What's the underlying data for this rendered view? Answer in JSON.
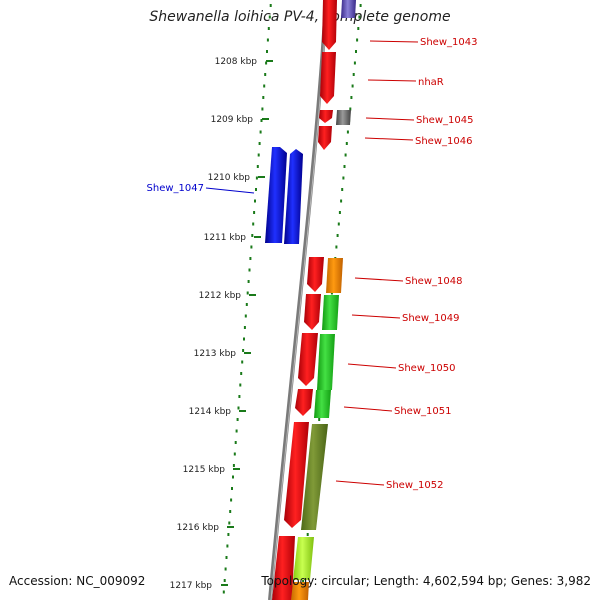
{
  "title": "Shewanella loihica PV-4, complete genome",
  "footer": {
    "accession": "Accession: NC_009092",
    "summary": "Topology: circular; Length: 4,602,594 bp; Genes: 3,982"
  },
  "colors": {
    "backbone": "#888888",
    "tick": "#1a7a1a",
    "label_red": "#cc0000",
    "label_blue": "#0000cc",
    "label_dark": "#222222"
  },
  "ruler": {
    "unit": "kbp",
    "labels": [
      "1208 kbp",
      "1209 kbp",
      "1210 kbp",
      "1211 kbp",
      "1212 kbp",
      "1213 kbp",
      "1214 kbp",
      "1215 kbp",
      "1216 kbp",
      "1217 kbp"
    ]
  },
  "genes": [
    {
      "label": "Shew_1043",
      "strand": "reverse",
      "color": "#e8000b"
    },
    {
      "label": "nhaR",
      "strand": "reverse",
      "color": "#e8000b"
    },
    {
      "label": "Shew_1045",
      "strand": "reverse",
      "color": "#e8000b"
    },
    {
      "label": "Shew_1046",
      "strand": "reverse",
      "color": "#e8000b"
    },
    {
      "label": "Shew_1047",
      "strand": "forward",
      "color": "#0000dd"
    },
    {
      "label": "Shew_1048",
      "strand": "reverse",
      "color": "#e8000b"
    },
    {
      "label": "Shew_1049",
      "strand": "reverse",
      "color": "#e8000b"
    },
    {
      "label": "Shew_1050",
      "strand": "reverse",
      "color": "#e8000b"
    },
    {
      "label": "Shew_1051",
      "strand": "reverse",
      "color": "#e8000b"
    },
    {
      "label": "Shew_1052",
      "strand": "reverse",
      "color": "#e8000b"
    }
  ]
}
